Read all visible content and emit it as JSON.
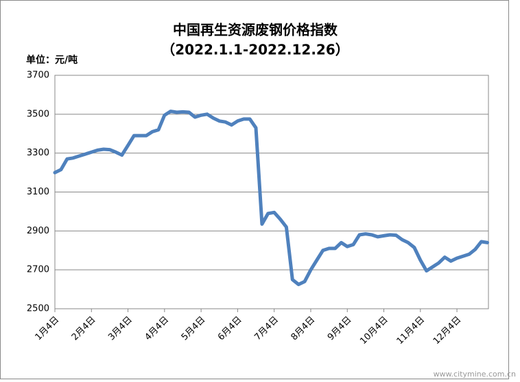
{
  "chart_data": {
    "type": "line",
    "title": "中国再生资源废钢价格指数",
    "subtitle": "（2022.1.1-2022.12.26）",
    "y_axis_label": "单位：元/吨",
    "watermark": "www.citymine.com.cn",
    "categories": [
      "1月4日",
      null,
      null,
      null,
      null,
      null,
      "2月4日",
      null,
      null,
      null,
      null,
      null,
      "3月4日",
      null,
      null,
      null,
      null,
      null,
      "4月4日",
      null,
      null,
      null,
      null,
      null,
      "5月4日",
      null,
      null,
      null,
      null,
      null,
      "6月4日",
      null,
      null,
      null,
      null,
      null,
      "7月4日",
      null,
      null,
      null,
      null,
      null,
      "8月4日",
      null,
      null,
      null,
      null,
      null,
      "9月4日",
      null,
      null,
      null,
      null,
      null,
      "10月4日",
      null,
      null,
      null,
      null,
      null,
      "11月4日",
      null,
      null,
      null,
      null,
      null,
      "12月4日",
      null,
      null,
      null,
      null,
      null
    ],
    "series": [
      {
        "color": "#4f81bd",
        "values": [
          3200,
          3215,
          3270,
          3275,
          3285,
          3295,
          3305,
          3315,
          3320,
          3318,
          3305,
          3290,
          3340,
          3390,
          3390,
          3390,
          3410,
          3420,
          3495,
          3515,
          3510,
          3512,
          3510,
          3485,
          3495,
          3500,
          3480,
          3465,
          3460,
          3445,
          3465,
          3475,
          3475,
          3430,
          2935,
          2990,
          2995,
          2960,
          2920,
          2650,
          2625,
          2640,
          2700,
          2750,
          2800,
          2810,
          2810,
          2840,
          2820,
          2830,
          2880,
          2885,
          2880,
          2870,
          2875,
          2880,
          2878,
          2855,
          2840,
          2815,
          2750,
          2695,
          2715,
          2735,
          2765,
          2745,
          2760,
          2770,
          2780,
          2805,
          2845,
          2840
        ]
      }
    ],
    "ylim": [
      2500,
      3700
    ],
    "yticks": [
      2500,
      2700,
      2900,
      3100,
      3300,
      3500,
      3700
    ],
    "grid": true
  }
}
